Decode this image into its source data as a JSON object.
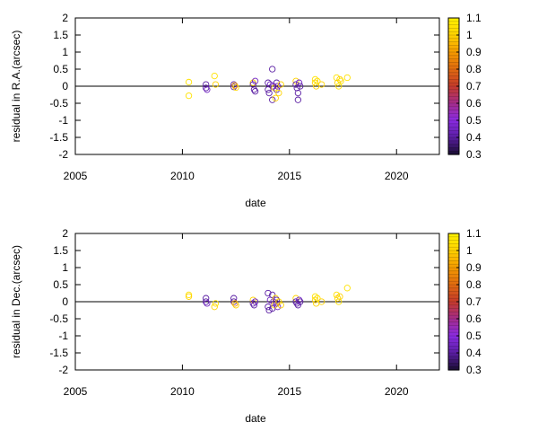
{
  "chart_data": [
    {
      "type": "scatter",
      "xlabel": "date",
      "ylabel": "residual in R.A.(arcsec)",
      "xlim": [
        2005,
        2022
      ],
      "ylim": [
        -2,
        2
      ],
      "xticks": [
        "2005",
        "2010",
        "2015",
        "2020"
      ],
      "yticks": [
        "2",
        "1.5",
        "1",
        "0.5",
        "0",
        "-0.5",
        "-1",
        "-1.5",
        "-2"
      ],
      "zero_line": true,
      "marker": "open-circle",
      "colorbar": {
        "range": [
          0.3,
          1.1
        ],
        "ticks": [
          "1.1",
          "1",
          "0.9",
          "0.8",
          "0.7",
          "0.6",
          "0.5",
          "0.4",
          "0.3"
        ],
        "palette": [
          "#1a0d33",
          "#5a1ea3",
          "#8a2be2",
          "#a42c8a",
          "#c43a2a",
          "#e06a10",
          "#f49a00",
          "#ffd200",
          "#fff200"
        ]
      },
      "points": [
        {
          "x": 2010.3,
          "y": 0.12,
          "c": 1.05
        },
        {
          "x": 2010.3,
          "y": -0.28,
          "c": 1.05
        },
        {
          "x": 2011.1,
          "y": 0.05,
          "c": 0.4
        },
        {
          "x": 2011.1,
          "y": -0.05,
          "c": 0.4
        },
        {
          "x": 2011.15,
          "y": -0.1,
          "c": 0.45
        },
        {
          "x": 2011.5,
          "y": 0.3,
          "c": 1.05
        },
        {
          "x": 2011.55,
          "y": 0.05,
          "c": 1.0
        },
        {
          "x": 2012.4,
          "y": 0.05,
          "c": 0.4
        },
        {
          "x": 2012.4,
          "y": -0.02,
          "c": 0.4
        },
        {
          "x": 2012.45,
          "y": 0.02,
          "c": 0.9
        },
        {
          "x": 2012.5,
          "y": -0.04,
          "c": 1.0
        },
        {
          "x": 2013.3,
          "y": 0.1,
          "c": 1.0
        },
        {
          "x": 2013.3,
          "y": 0.05,
          "c": 0.4
        },
        {
          "x": 2013.35,
          "y": -0.1,
          "c": 0.4
        },
        {
          "x": 2013.4,
          "y": -0.15,
          "c": 0.4
        },
        {
          "x": 2013.4,
          "y": 0.15,
          "c": 0.45
        },
        {
          "x": 2014.0,
          "y": 0.1,
          "c": 0.4
        },
        {
          "x": 2014.0,
          "y": -0.1,
          "c": 0.4
        },
        {
          "x": 2014.05,
          "y": -0.2,
          "c": 0.4
        },
        {
          "x": 2014.1,
          "y": 0.05,
          "c": 0.45
        },
        {
          "x": 2014.2,
          "y": 0.5,
          "c": 0.4
        },
        {
          "x": 2014.2,
          "y": -0.4,
          "c": 0.4
        },
        {
          "x": 2014.25,
          "y": 0.0,
          "c": 0.45
        },
        {
          "x": 2014.3,
          "y": -0.05,
          "c": 1.0
        },
        {
          "x": 2014.35,
          "y": -0.35,
          "c": 1.0
        },
        {
          "x": 2014.4,
          "y": 0.1,
          "c": 0.4
        },
        {
          "x": 2014.4,
          "y": -0.1,
          "c": 0.4
        },
        {
          "x": 2014.45,
          "y": 0.0,
          "c": 0.45
        },
        {
          "x": 2014.5,
          "y": -0.2,
          "c": 1.0
        },
        {
          "x": 2014.6,
          "y": 0.05,
          "c": 1.0
        },
        {
          "x": 2015.3,
          "y": 0.15,
          "c": 1.0
        },
        {
          "x": 2015.3,
          "y": 0.05,
          "c": 0.4
        },
        {
          "x": 2015.35,
          "y": -0.05,
          "c": 0.4
        },
        {
          "x": 2015.4,
          "y": -0.2,
          "c": 0.4
        },
        {
          "x": 2015.4,
          "y": -0.4,
          "c": 0.4
        },
        {
          "x": 2015.45,
          "y": 0.1,
          "c": 0.45
        },
        {
          "x": 2015.5,
          "y": 0.0,
          "c": 0.4
        },
        {
          "x": 2016.2,
          "y": 0.2,
          "c": 1.05
        },
        {
          "x": 2016.2,
          "y": 0.1,
          "c": 1.0
        },
        {
          "x": 2016.25,
          "y": 0.0,
          "c": 1.0
        },
        {
          "x": 2016.3,
          "y": 0.15,
          "c": 1.05
        },
        {
          "x": 2016.5,
          "y": 0.05,
          "c": 1.0
        },
        {
          "x": 2017.2,
          "y": 0.25,
          "c": 1.05
        },
        {
          "x": 2017.25,
          "y": 0.1,
          "c": 1.0
        },
        {
          "x": 2017.3,
          "y": 0.0,
          "c": 1.05
        },
        {
          "x": 2017.35,
          "y": 0.2,
          "c": 1.0
        },
        {
          "x": 2017.4,
          "y": 0.15,
          "c": 1.05
        },
        {
          "x": 2017.7,
          "y": 0.25,
          "c": 1.05
        }
      ]
    },
    {
      "type": "scatter",
      "xlabel": "date",
      "ylabel": "residual in Dec.(arcsec)",
      "xlim": [
        2005,
        2022
      ],
      "ylim": [
        -2,
        2
      ],
      "xticks": [
        "2005",
        "2010",
        "2015",
        "2020"
      ],
      "yticks": [
        "2",
        "1.5",
        "1",
        "0.5",
        "0",
        "-0.5",
        "-1",
        "-1.5",
        "-2"
      ],
      "zero_line": true,
      "marker": "open-circle",
      "colorbar": {
        "range": [
          0.3,
          1.1
        ],
        "ticks": [
          "1.1",
          "1",
          "0.9",
          "0.8",
          "0.7",
          "0.6",
          "0.5",
          "0.4",
          "0.3"
        ],
        "palette": [
          "#1a0d33",
          "#5a1ea3",
          "#8a2be2",
          "#a42c8a",
          "#c43a2a",
          "#e06a10",
          "#f49a00",
          "#ffd200",
          "#fff200"
        ]
      },
      "points": [
        {
          "x": 2010.3,
          "y": 0.2,
          "c": 1.05
        },
        {
          "x": 2010.3,
          "y": 0.15,
          "c": 1.0
        },
        {
          "x": 2011.1,
          "y": 0.1,
          "c": 0.4
        },
        {
          "x": 2011.1,
          "y": 0.0,
          "c": 0.4
        },
        {
          "x": 2011.15,
          "y": -0.05,
          "c": 0.45
        },
        {
          "x": 2011.5,
          "y": -0.15,
          "c": 1.0
        },
        {
          "x": 2011.55,
          "y": -0.05,
          "c": 1.05
        },
        {
          "x": 2012.4,
          "y": 0.1,
          "c": 0.4
        },
        {
          "x": 2012.4,
          "y": 0.0,
          "c": 0.4
        },
        {
          "x": 2012.45,
          "y": -0.05,
          "c": 0.9
        },
        {
          "x": 2012.5,
          "y": -0.1,
          "c": 1.0
        },
        {
          "x": 2013.3,
          "y": 0.05,
          "c": 1.0
        },
        {
          "x": 2013.3,
          "y": -0.05,
          "c": 0.4
        },
        {
          "x": 2013.35,
          "y": -0.1,
          "c": 0.4
        },
        {
          "x": 2013.4,
          "y": 0.0,
          "c": 0.45
        },
        {
          "x": 2014.0,
          "y": 0.25,
          "c": 0.4
        },
        {
          "x": 2014.0,
          "y": -0.15,
          "c": 0.4
        },
        {
          "x": 2014.05,
          "y": -0.25,
          "c": 0.4
        },
        {
          "x": 2014.1,
          "y": 0.05,
          "c": 0.45
        },
        {
          "x": 2014.2,
          "y": 0.2,
          "c": 0.4
        },
        {
          "x": 2014.2,
          "y": -0.2,
          "c": 0.4
        },
        {
          "x": 2014.25,
          "y": 0.0,
          "c": 0.45
        },
        {
          "x": 2014.3,
          "y": -0.1,
          "c": 1.0
        },
        {
          "x": 2014.35,
          "y": 0.1,
          "c": 1.0
        },
        {
          "x": 2014.4,
          "y": 0.05,
          "c": 0.4
        },
        {
          "x": 2014.4,
          "y": -0.05,
          "c": 0.4
        },
        {
          "x": 2014.45,
          "y": -0.15,
          "c": 0.45
        },
        {
          "x": 2014.5,
          "y": 0.0,
          "c": 1.0
        },
        {
          "x": 2014.6,
          "y": -0.1,
          "c": 1.0
        },
        {
          "x": 2015.3,
          "y": 0.1,
          "c": 1.0
        },
        {
          "x": 2015.3,
          "y": 0.0,
          "c": 0.4
        },
        {
          "x": 2015.35,
          "y": -0.05,
          "c": 0.4
        },
        {
          "x": 2015.4,
          "y": -0.1,
          "c": 0.4
        },
        {
          "x": 2015.45,
          "y": 0.05,
          "c": 0.45
        },
        {
          "x": 2015.5,
          "y": 0.0,
          "c": 0.4
        },
        {
          "x": 2016.2,
          "y": 0.15,
          "c": 1.05
        },
        {
          "x": 2016.2,
          "y": 0.05,
          "c": 1.0
        },
        {
          "x": 2016.25,
          "y": -0.05,
          "c": 1.0
        },
        {
          "x": 2016.3,
          "y": 0.1,
          "c": 1.05
        },
        {
          "x": 2016.5,
          "y": 0.0,
          "c": 1.0
        },
        {
          "x": 2017.2,
          "y": 0.2,
          "c": 1.05
        },
        {
          "x": 2017.25,
          "y": 0.1,
          "c": 1.0
        },
        {
          "x": 2017.3,
          "y": 0.0,
          "c": 1.05
        },
        {
          "x": 2017.35,
          "y": 0.15,
          "c": 1.0
        },
        {
          "x": 2017.7,
          "y": 0.4,
          "c": 1.05
        }
      ]
    }
  ]
}
